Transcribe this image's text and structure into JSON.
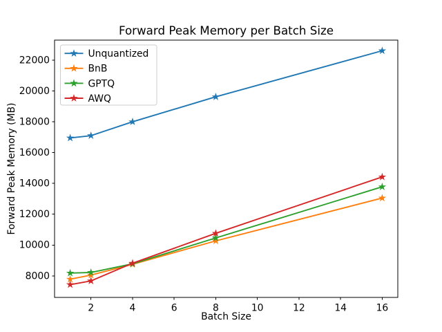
{
  "figure": {
    "title": "Forward Peak Memory per Batch Size",
    "xlabel": "Batch Size",
    "ylabel": "Forward Peak Memory (MB)"
  },
  "chart_data": {
    "type": "line",
    "title": "Forward Peak Memory per Batch Size",
    "xlabel": "Batch Size",
    "ylabel": "Forward Peak Memory (MB)",
    "x": [
      1,
      2,
      4,
      8,
      16
    ],
    "series": [
      {
        "name": "Unquantized",
        "color": "#1f77b4",
        "values": [
          16950,
          17100,
          18000,
          19620,
          22610
        ]
      },
      {
        "name": "BnB",
        "color": "#ff7f0e",
        "values": [
          7780,
          8050,
          8750,
          10270,
          13050
        ]
      },
      {
        "name": "GPTQ",
        "color": "#2ca02c",
        "values": [
          8180,
          8220,
          8780,
          10460,
          13780
        ]
      },
      {
        "name": "AWQ",
        "color": "#d62728",
        "values": [
          7430,
          7670,
          8820,
          10760,
          14420
        ]
      }
    ],
    "marker": "star",
    "xlim": [
      0.25,
      16.75
    ],
    "ylim": [
      6600,
      23300
    ],
    "xticks": [
      2,
      4,
      6,
      8,
      10,
      12,
      14,
      16
    ],
    "yticks": [
      8000,
      10000,
      12000,
      14000,
      16000,
      18000,
      20000,
      22000
    ],
    "grid": false,
    "legend_position": "upper left",
    "spine_color": "#000000",
    "background_color": "#ffffff",
    "legend_border_color": "#cccccc"
  }
}
